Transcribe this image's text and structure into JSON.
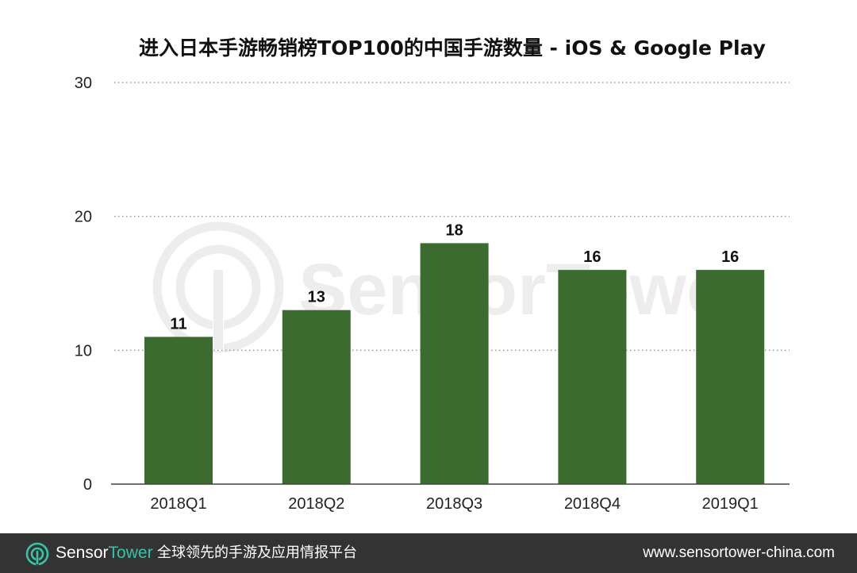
{
  "chart_data": {
    "type": "bar",
    "title": "进入日本手游畅销榜TOP100的中国手游数量 - iOS & Google Play",
    "categories": [
      "2018Q1",
      "2018Q2",
      "2018Q3",
      "2018Q4",
      "2019Q1"
    ],
    "values": [
      11,
      13,
      18,
      16,
      16
    ],
    "data_labels": [
      "11",
      "13",
      "18",
      "16",
      "16"
    ],
    "y_ticks": [
      0,
      10,
      20,
      30
    ],
    "y_tick_labels": [
      "0",
      "10",
      "20",
      "30"
    ],
    "ylim": [
      0,
      30
    ],
    "xlabel": "",
    "ylabel": "",
    "grid": true,
    "bar_color": "#3b6b2e"
  },
  "watermark": {
    "brand_first": "Sensor",
    "brand_second": "Tower"
  },
  "footer": {
    "brand_first": "Sensor",
    "brand_second": "Tower",
    "tagline": "全球领先的手游及应用情报平台",
    "url": "www.sensortower-china.com",
    "logo_icon": "sensortower-logo-icon",
    "accent_color": "#36c3a6",
    "background_color": "#333333"
  }
}
